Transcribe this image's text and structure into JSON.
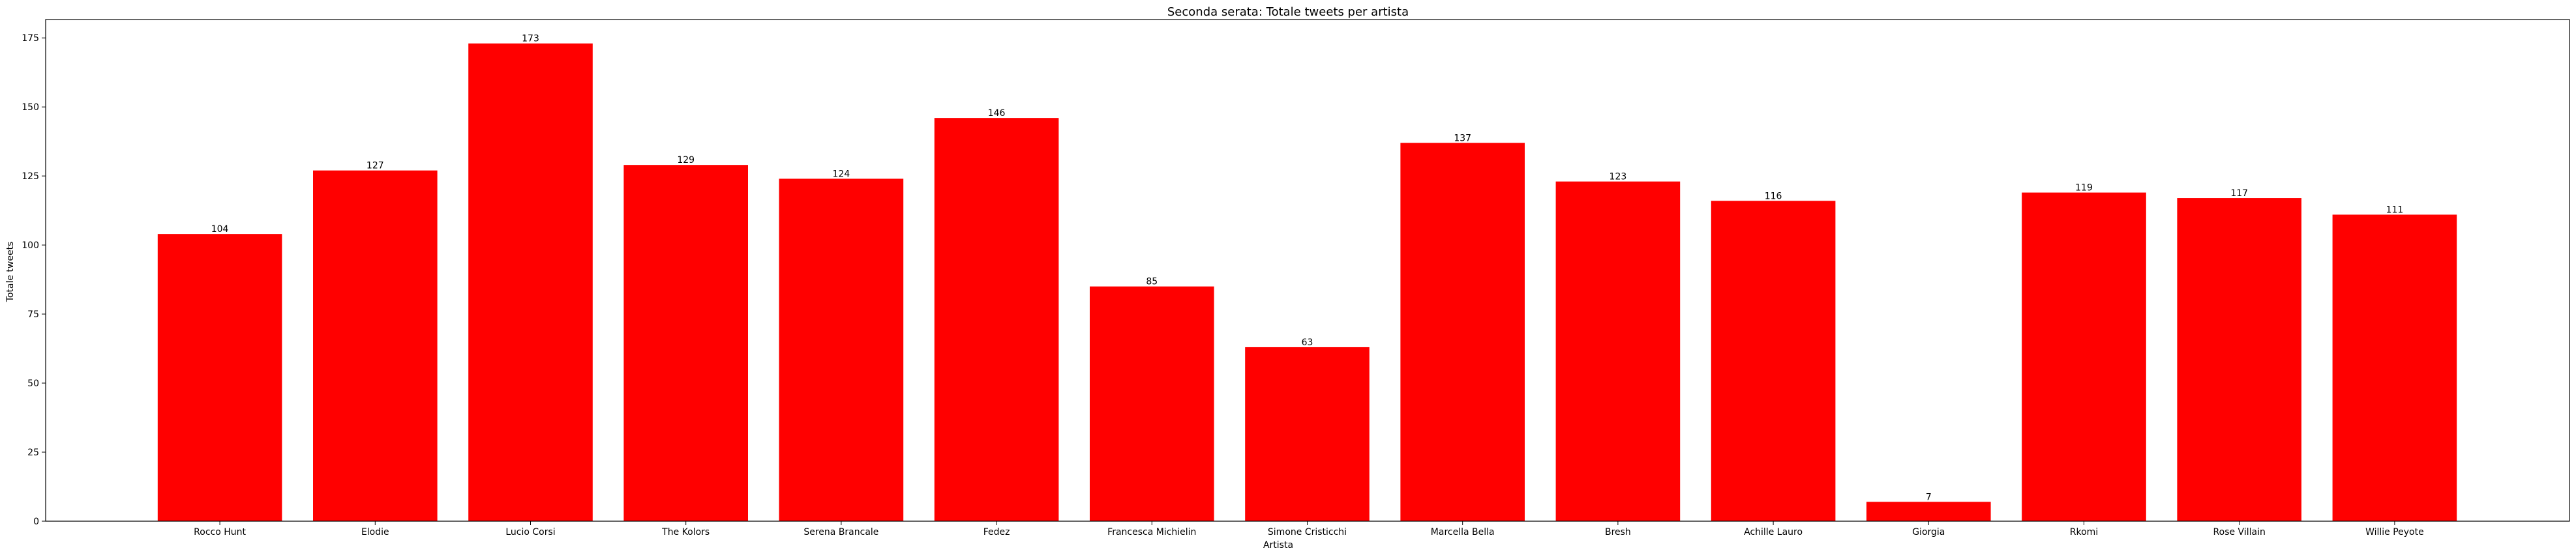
{
  "chart_data": {
    "type": "bar",
    "title": "Seconda serata: Totale tweets per artista",
    "xlabel": "Artista",
    "ylabel": "Totale tweets",
    "categories": [
      "Rocco Hunt",
      "Elodie",
      "Lucio Corsi",
      "The Kolors",
      "Serena Brancale",
      "Fedez",
      "Francesca Michielin",
      "Simone Cristicchi",
      "Marcella Bella",
      "Bresh",
      "Achille Lauro",
      "Giorgia",
      "Rkomi",
      "Rose Villain",
      "Willie Peyote"
    ],
    "values": [
      104,
      127,
      173,
      129,
      124,
      146,
      85,
      63,
      137,
      123,
      116,
      7,
      119,
      117,
      111
    ],
    "data_labels": [
      "104",
      "127",
      "173",
      "129",
      "124",
      "146",
      "85",
      "63",
      "137",
      "123",
      "116",
      "7",
      "119",
      "117",
      "111"
    ],
    "yticks": [
      0,
      25,
      50,
      75,
      100,
      125,
      150,
      175
    ],
    "ytick_labels": [
      "0",
      "25",
      "50",
      "75",
      "100",
      "125",
      "150",
      "175"
    ],
    "ylim": [
      0,
      181.65
    ],
    "grid": false,
    "bar_color": "#ff0000",
    "axis_color": "#000000"
  }
}
